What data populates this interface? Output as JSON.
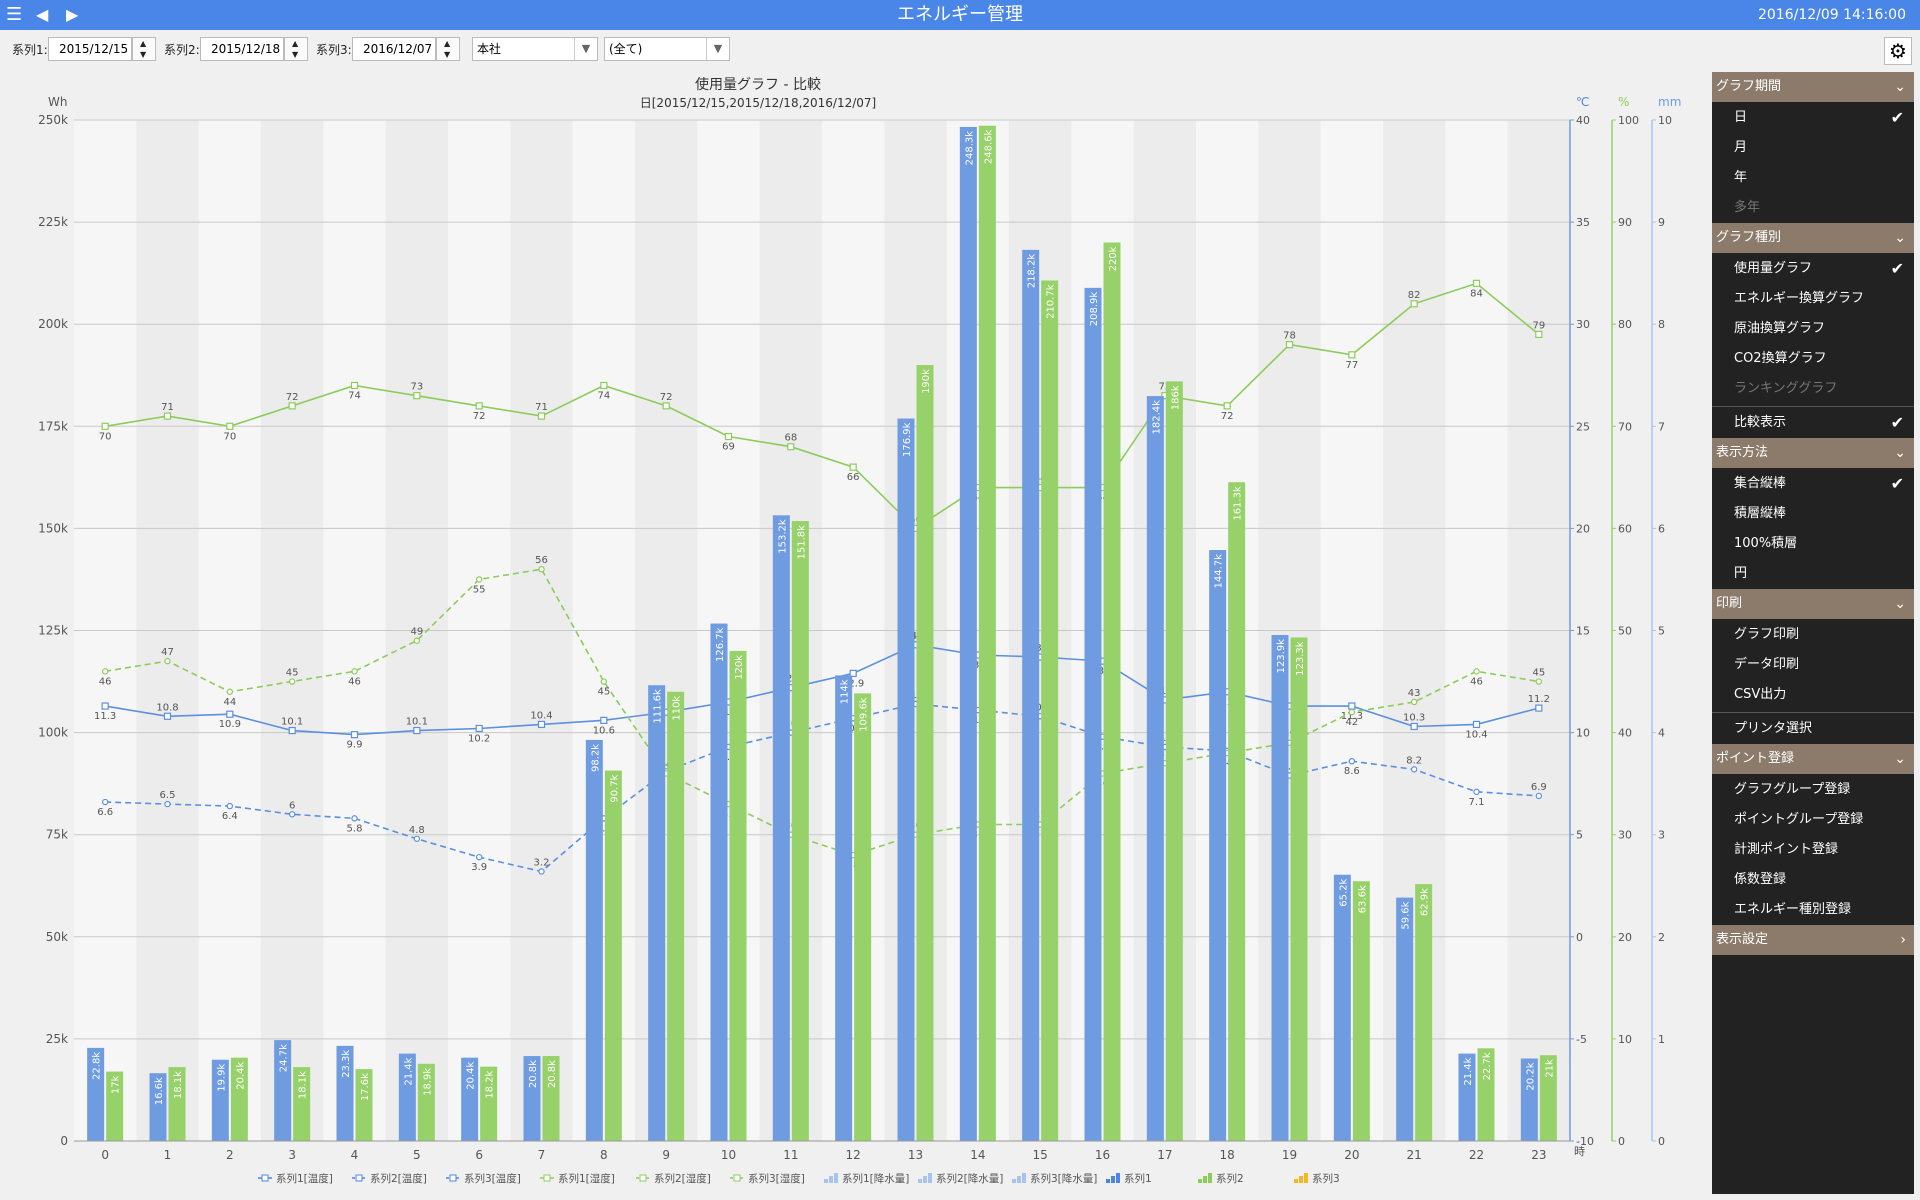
{
  "app": {
    "title": "エネルギー管理",
    "clock": "2016/12/09 14:16:00"
  },
  "toolbar": {
    "series1_label": "系列1:",
    "series1_date": "2015/12/15",
    "series2_label": "系列2:",
    "series2_date": "2015/12/18",
    "series3_label": "系列3:",
    "series3_date": "2016/12/07",
    "location": "本社",
    "category": "(全て)"
  },
  "icons": {
    "menu": "hamburger-icon",
    "back": "prev-arrow-icon",
    "forward": "next-arrow-icon",
    "settings": "gear-icon",
    "check": "checkmark-icon",
    "chevron": "chevron-down-icon"
  },
  "colors": {
    "titlebar": "#4a86e8",
    "series1": "#6f9be0",
    "series2": "#97d169",
    "series3": "#f2b91f",
    "sidebar_bg": "#222222",
    "section_bg": "#8c7b6b"
  },
  "chart_data": {
    "type": "bar",
    "title": "使用量グラフ - 比較",
    "subtitle": "日[2015/12/15,2015/12/18,2016/12/07]",
    "ylabel": "Wh",
    "xlabel": "時",
    "ylim": [
      0,
      250000
    ],
    "y_ticks": [
      "0",
      "25k",
      "50k",
      "75k",
      "100k",
      "125k",
      "150k",
      "175k",
      "200k",
      "225k",
      "250k"
    ],
    "right_axes": [
      {
        "unit": "℃",
        "ylim": [
          -10,
          40
        ],
        "ticks": [
          "-10",
          "-5",
          "0",
          "5",
          "10",
          "15",
          "20",
          "25",
          "30",
          "35",
          "40"
        ]
      },
      {
        "unit": "%",
        "ylim": [
          0,
          100
        ],
        "ticks": [
          "0",
          "10",
          "20",
          "30",
          "40",
          "50",
          "60",
          "70",
          "80",
          "90",
          "100"
        ]
      },
      {
        "unit": "mm",
        "ylim": [
          0,
          10
        ],
        "ticks": [
          "0",
          "1",
          "2",
          "3",
          "4",
          "5",
          "6",
          "7",
          "8",
          "9",
          "10"
        ]
      }
    ],
    "categories": [
      "0",
      "1",
      "2",
      "3",
      "4",
      "5",
      "6",
      "7",
      "8",
      "9",
      "10",
      "11",
      "12",
      "13",
      "14",
      "15",
      "16",
      "17",
      "18",
      "19",
      "20",
      "21",
      "22",
      "23"
    ],
    "series": [
      {
        "name": "系列1",
        "values": [
          22800,
          16600,
          19900,
          24700,
          23300,
          21400,
          20400,
          20800,
          98200,
          111600,
          126700,
          153200,
          114000,
          176900,
          248300,
          218200,
          208900,
          182400,
          144700,
          123900,
          65200,
          59600,
          21400,
          20200
        ],
        "labels": [
          "22.8k",
          "16.6k",
          "19.9k",
          "24.7k",
          "23.3k",
          "21.4k",
          "20.4k",
          "20.8k",
          "98.2k",
          "111.6k",
          "126.7k",
          "153.2k",
          "114k",
          "176.9k",
          "248.3k",
          "218.2k",
          "208.9k",
          "182.4k",
          "144.7k",
          "123.9k",
          "65.2k",
          "59.6k",
          "21.4k",
          "20.2k"
        ]
      },
      {
        "name": "系列2",
        "values": [
          17000,
          18100,
          20400,
          18100,
          17600,
          18900,
          18200,
          20800,
          90700,
          110000,
          120000,
          151800,
          109600,
          190000,
          248600,
          210700,
          220000,
          186000,
          161300,
          123300,
          63600,
          62900,
          22700,
          21000
        ],
        "labels": [
          "17k",
          "18.1k",
          "20.4k",
          "18.1k",
          "17.6k",
          "18.9k",
          "18.2k",
          "20.8k",
          "90.7k",
          "110k",
          "120k",
          "151.8k",
          "109.6k",
          "190k",
          "248.6k",
          "210.7k",
          "220k",
          "186k",
          "161.3k",
          "123.3k",
          "63.6k",
          "62.9k",
          "22.7k",
          "21k"
        ]
      }
    ],
    "lines": [
      {
        "name": "系列1[温度]",
        "axis": "℃",
        "dash": false,
        "color": "#5b8fe0",
        "marker": "square",
        "values": [
          11.3,
          10.8,
          10.9,
          10.1,
          9.9,
          10.1,
          10.2,
          10.4,
          10.6,
          11.0,
          11.5,
          12.2,
          12.9,
          14.3,
          13.8,
          13.7,
          13.5,
          11.6,
          12.0,
          11.3,
          11.3,
          10.3,
          10.4,
          11.2
        ],
        "labels": [
          "11.3",
          "10.8",
          "10.9",
          "10.1",
          "9.9",
          "10.1",
          "10.2",
          "10.4",
          "10.6",
          "",
          "11.5",
          "12.2",
          "12.9",
          "14.3",
          "13.8",
          "13.7",
          "13.5",
          "11.6",
          "12",
          "",
          "11.3",
          "10.3",
          "10.4",
          "11.2"
        ]
      },
      {
        "name": "系列3[温度]",
        "axis": "℃",
        "dash": true,
        "color": "#5b8fe0",
        "marker": "circle",
        "values": [
          6.6,
          6.5,
          6.4,
          6.0,
          5.8,
          4.8,
          3.9,
          3.2,
          5.8,
          8.1,
          9.3,
          10.0,
          10.7,
          11.4,
          11.1,
          10.8,
          9.8,
          9.3,
          9.1,
          7.9,
          8.6,
          8.2,
          7.1,
          6.9
        ],
        "labels": [
          "6.6",
          "6.5",
          "6.4",
          "6",
          "5.8",
          "4.8",
          "3.9",
          "3.2",
          "5.8",
          "8.1",
          "9.3",
          "10",
          "10.7",
          "11.4",
          "11.1",
          "10.8",
          "9.8",
          "9.3",
          "9.1",
          "7.9",
          "8.6",
          "8.2",
          "7.1",
          "6.9"
        ]
      },
      {
        "name": "系列1[湿度]",
        "axis": "%",
        "dash": false,
        "color": "#8ccc5a",
        "marker": "square",
        "values": [
          70,
          71,
          70,
          72,
          74,
          73,
          72,
          71,
          74,
          72,
          69,
          68,
          66,
          60,
          64,
          64,
          64,
          73,
          72,
          78,
          77,
          82,
          84,
          79
        ],
        "labels": [
          "70",
          "71",
          "70",
          "72",
          "74",
          "73",
          "72",
          "71",
          "74",
          "72",
          "69",
          "68",
          "66",
          "60",
          "64",
          "64",
          "64",
          "73",
          "72",
          "78",
          "77",
          "82",
          "84",
          "79"
        ]
      },
      {
        "name": "系列3[湿度]",
        "axis": "%",
        "dash": true,
        "color": "#8ccc5a",
        "marker": "circle",
        "values": [
          46,
          47,
          44,
          45,
          46,
          49,
          55,
          56,
          45,
          36,
          33,
          30,
          28,
          30,
          31,
          31,
          36,
          37,
          38,
          39,
          42,
          43,
          46,
          45
        ],
        "labels": [
          "46",
          "47",
          "44",
          "45",
          "46",
          "49",
          "55",
          "56",
          "45",
          "36",
          "33",
          "30",
          "28",
          "30",
          "31",
          "31",
          "36",
          "37",
          "38",
          "39",
          "42",
          "43",
          "46",
          "45"
        ]
      }
    ],
    "legend": [
      "系列1[温度]",
      "系列2[温度]",
      "系列3[温度]",
      "系列1[湿度]",
      "系列2[湿度]",
      "系列3[湿度]",
      "系列1[降水量]",
      "系列2[降水量]",
      "系列3[降水量]",
      "系列1",
      "系列2",
      "系列3"
    ],
    "legend_position": "bottom",
    "grid": true
  },
  "sidebar": {
    "sections": [
      {
        "label": "グラフ期間",
        "chevron": "chevron-down-icon",
        "items": [
          {
            "label": "日",
            "checked": true,
            "disabled": false
          },
          {
            "label": "月",
            "checked": false,
            "disabled": false
          },
          {
            "label": "年",
            "checked": false,
            "disabled": false
          },
          {
            "label": "多年",
            "checked": false,
            "disabled": true
          }
        ]
      },
      {
        "label": "グラフ種別",
        "chevron": "chevron-down-icon",
        "items": [
          {
            "label": "使用量グラフ",
            "checked": true,
            "disabled": false
          },
          {
            "label": "エネルギー換算グラフ",
            "checked": false,
            "disabled": false
          },
          {
            "label": "原油換算グラフ",
            "checked": false,
            "disabled": false
          },
          {
            "label": "CO2換算グラフ",
            "checked": false,
            "disabled": false
          },
          {
            "label": "ランキンググラフ",
            "checked": false,
            "disabled": true
          }
        ]
      },
      {
        "toggle": "比較表示",
        "checked": true
      },
      {
        "label": "表示方法",
        "chevron": "chevron-down-icon",
        "items": [
          {
            "label": "集合縦棒",
            "checked": true,
            "disabled": false
          },
          {
            "label": "積層縦棒",
            "checked": false,
            "disabled": false
          },
          {
            "label": "100%積層",
            "checked": false,
            "disabled": false
          },
          {
            "label": "円",
            "checked": false,
            "disabled": false
          }
        ]
      },
      {
        "label": "印刷",
        "chevron": "chevron-down-icon",
        "items": [
          {
            "label": "グラフ印刷",
            "checked": false,
            "disabled": false
          },
          {
            "label": "データ印刷",
            "checked": false,
            "disabled": false
          },
          {
            "label": "CSV出力",
            "checked": false,
            "disabled": false
          }
        ]
      },
      {
        "toggle": "プリンタ選択",
        "checked": false
      },
      {
        "label": "ポイント登録",
        "chevron": "chevron-down-icon",
        "items": [
          {
            "label": "グラフグループ登録",
            "checked": false,
            "disabled": false
          },
          {
            "label": "ポイントグループ登録",
            "checked": false,
            "disabled": false
          },
          {
            "label": "計測ポイント登録",
            "checked": false,
            "disabled": false
          },
          {
            "label": "係数登録",
            "checked": false,
            "disabled": false
          },
          {
            "label": "エネルギー種別登録",
            "checked": false,
            "disabled": false
          }
        ]
      },
      {
        "label": "表示設定",
        "chevron": "chevron-right-icon",
        "items": []
      }
    ]
  }
}
